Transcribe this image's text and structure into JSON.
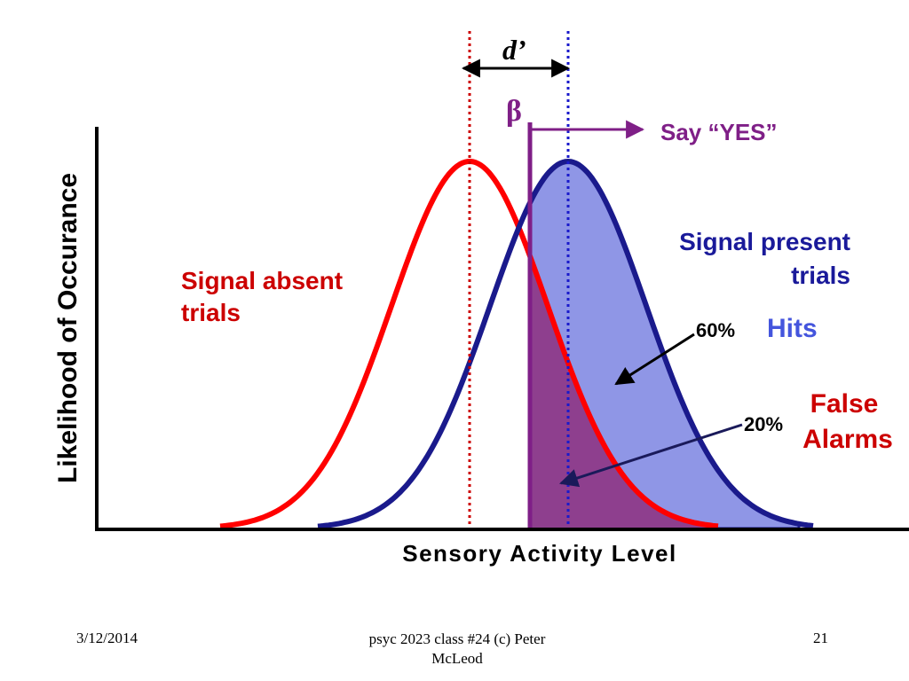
{
  "colors": {
    "signal_absent": "#ff0000",
    "signal_present": "#1a1a8c",
    "criterion": "#7f1f87",
    "dprime": "#000000",
    "absent_label": "#cc0000",
    "present_label": "#1a1a9a",
    "hits_label": "#4455dd",
    "fill_blue": "#8f96e6",
    "fill_purple": "#8e3f8e",
    "axis": "#000000"
  },
  "labels": {
    "dprime": "d’",
    "beta": "β",
    "say_yes": "Say “YES”",
    "y_axis": "Likelihood of Occurance",
    "x_axis": "Sensory Activity Level",
    "signal_absent_line1": "Signal absent",
    "signal_absent_line2": "trials",
    "signal_present_line1": "Signal present",
    "signal_present_line2": "trials",
    "hits_pct": "60%",
    "hits": "Hits",
    "fa_pct": "20%",
    "false_alarms_line1": "False",
    "false_alarms_line2": "Alarms"
  },
  "footer": {
    "date": "3/12/2014",
    "credit_line1": "psyc 2023 class #24 (c) Peter",
    "credit_line2": "McLeod",
    "page": "21"
  }
}
